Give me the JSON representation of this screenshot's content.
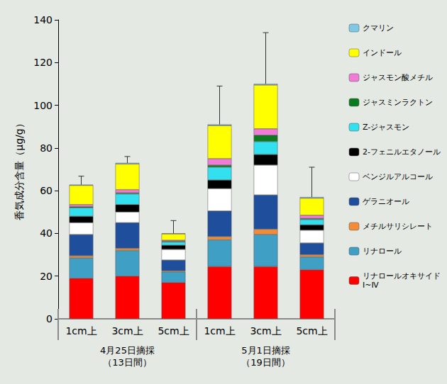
{
  "chart_data": {
    "type": "bar",
    "stacked": true,
    "y_label": "香気成分含量（μg/g）",
    "categories": [
      "1cm上",
      "3cm上",
      "5cm上",
      "1cm上",
      "3cm上",
      "5cm上"
    ],
    "groups": [
      {
        "label": "4月25日摘採\n（13日間）",
        "categories": [
          "1cm上",
          "3cm上",
          "5cm上"
        ]
      },
      {
        "label": "5月1日摘採\n（19日間）",
        "categories": [
          "1cm上",
          "3cm上",
          "5cm上"
        ]
      }
    ],
    "series": [
      {
        "name": "リナロールオキサイドⅠ~Ⅳ",
        "color": "#ff0000",
        "values": [
          19,
          20,
          17,
          24.5,
          24.5,
          23
        ]
      },
      {
        "name": "リナロール",
        "color": "#3f9fc4",
        "values": [
          9.5,
          12,
          5,
          12.5,
          15,
          6
        ]
      },
      {
        "name": "メチルサリシレート",
        "color": "#f28c38",
        "values": [
          1,
          1,
          0.5,
          1.5,
          2.5,
          1
        ]
      },
      {
        "name": "ゲラニオール",
        "color": "#1f4e9c",
        "values": [
          10,
          12,
          5,
          12,
          16,
          5.5
        ]
      },
      {
        "name": "ベンジルアルコール",
        "color": "#ffffff",
        "values": [
          5.5,
          5,
          5,
          10.5,
          14,
          6
        ]
      },
      {
        "name": "2-フェニルエタノール",
        "color": "#000000",
        "values": [
          3,
          3.5,
          2,
          4,
          5,
          2.5
        ]
      },
      {
        "name": "Z-ジャスモン",
        "color": "#33e0f0",
        "values": [
          4,
          5,
          1.5,
          6,
          6,
          2.5
        ]
      },
      {
        "name": "ジャスミンラクトン",
        "color": "#0a7a1e",
        "values": [
          0.5,
          0.5,
          0.3,
          1,
          3,
          0.5
        ]
      },
      {
        "name": "ジャスモン酸メチル",
        "color": "#f07cd8",
        "values": [
          1,
          1.5,
          0.5,
          3,
          3,
          1.5
        ]
      },
      {
        "name": "インドール",
        "color": "#ffff00",
        "values": [
          9,
          12,
          3,
          15.5,
          20.5,
          8
        ]
      },
      {
        "name": "クマリン",
        "color": "#7ec8e3",
        "values": [
          0.3,
          0.5,
          0.2,
          0.5,
          0.5,
          0.5
        ]
      }
    ],
    "errors": [
      4,
      3,
      6,
      18,
      24,
      14
    ],
    "ylim": [
      0,
      140
    ],
    "yticks": [
      0,
      20,
      40,
      60,
      80,
      100,
      120,
      140
    ],
    "grid": false,
    "legend": "right"
  }
}
